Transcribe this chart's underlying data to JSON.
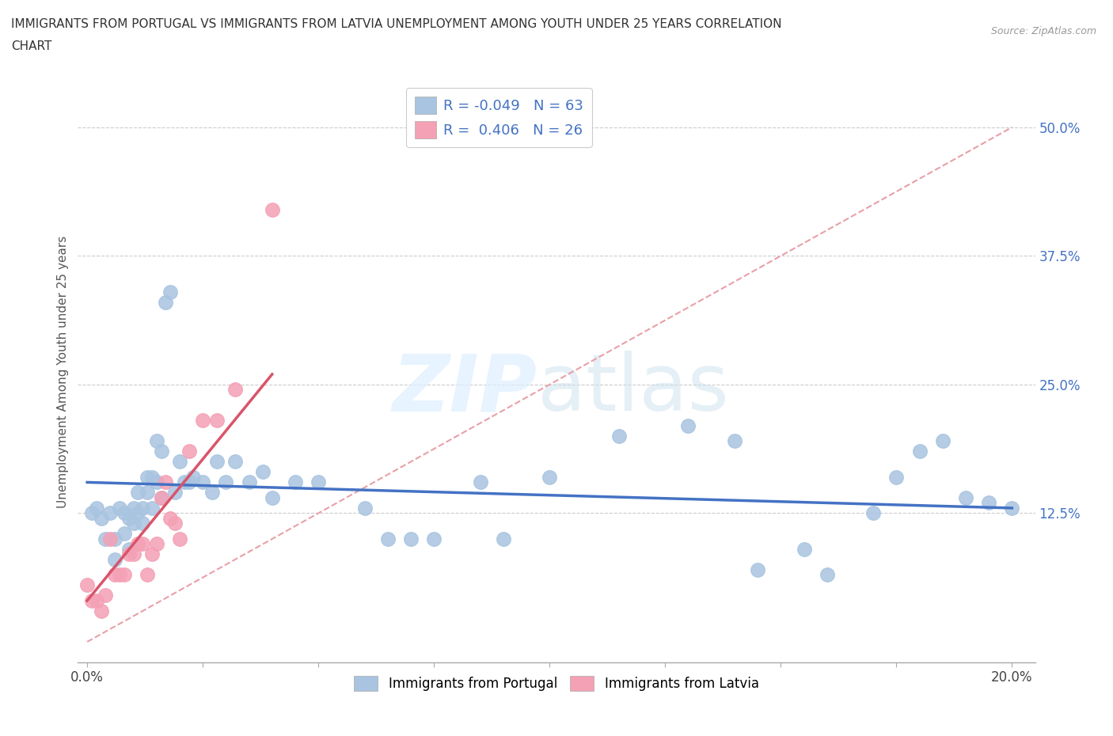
{
  "title": "IMMIGRANTS FROM PORTUGAL VS IMMIGRANTS FROM LATVIA UNEMPLOYMENT AMONG YOUTH UNDER 25 YEARS CORRELATION\nCHART",
  "source": "Source: ZipAtlas.com",
  "ylabel": "Unemployment Among Youth under 25 years",
  "xlim": [
    -0.002,
    0.205
  ],
  "ylim": [
    -0.02,
    0.545
  ],
  "y_tick_values_right": [
    0.125,
    0.25,
    0.375,
    0.5
  ],
  "y_tick_labels_right": [
    "12.5%",
    "25.0%",
    "37.5%",
    "50.0%"
  ],
  "x_ticks": [
    0.0,
    0.025,
    0.05,
    0.075,
    0.1,
    0.125,
    0.15,
    0.175,
    0.2
  ],
  "R_portugal": -0.049,
  "N_portugal": 63,
  "R_latvia": 0.406,
  "N_latvia": 26,
  "color_portugal": "#a8c4e0",
  "color_latvia": "#f4a0b5",
  "line_color_portugal": "#4472c4",
  "line_color_latvia": "#d9546a",
  "diagonal_color": "#e8a0a8",
  "portugal_x": [
    0.001,
    0.002,
    0.003,
    0.004,
    0.005,
    0.006,
    0.006,
    0.007,
    0.008,
    0.008,
    0.009,
    0.009,
    0.01,
    0.01,
    0.011,
    0.011,
    0.012,
    0.012,
    0.013,
    0.013,
    0.014,
    0.014,
    0.015,
    0.015,
    0.016,
    0.016,
    0.017,
    0.018,
    0.019,
    0.02,
    0.021,
    0.022,
    0.023,
    0.025,
    0.027,
    0.028,
    0.03,
    0.032,
    0.035,
    0.038,
    0.04,
    0.045,
    0.05,
    0.06,
    0.065,
    0.07,
    0.075,
    0.085,
    0.09,
    0.1,
    0.115,
    0.13,
    0.14,
    0.145,
    0.155,
    0.16,
    0.17,
    0.175,
    0.18,
    0.185,
    0.19,
    0.195,
    0.2
  ],
  "portugal_y": [
    0.125,
    0.13,
    0.12,
    0.1,
    0.125,
    0.1,
    0.08,
    0.13,
    0.125,
    0.105,
    0.12,
    0.09,
    0.13,
    0.115,
    0.125,
    0.145,
    0.13,
    0.115,
    0.145,
    0.16,
    0.13,
    0.16,
    0.155,
    0.195,
    0.14,
    0.185,
    0.33,
    0.34,
    0.145,
    0.175,
    0.155,
    0.155,
    0.16,
    0.155,
    0.145,
    0.175,
    0.155,
    0.175,
    0.155,
    0.165,
    0.14,
    0.155,
    0.155,
    0.13,
    0.1,
    0.1,
    0.1,
    0.155,
    0.1,
    0.16,
    0.2,
    0.21,
    0.195,
    0.07,
    0.09,
    0.065,
    0.125,
    0.16,
    0.185,
    0.195,
    0.14,
    0.135,
    0.13
  ],
  "latvia_x": [
    0.0,
    0.001,
    0.002,
    0.003,
    0.004,
    0.005,
    0.006,
    0.007,
    0.008,
    0.009,
    0.01,
    0.011,
    0.012,
    0.013,
    0.014,
    0.015,
    0.016,
    0.017,
    0.018,
    0.019,
    0.02,
    0.022,
    0.025,
    0.028,
    0.032,
    0.04
  ],
  "latvia_y": [
    0.055,
    0.04,
    0.04,
    0.03,
    0.045,
    0.1,
    0.065,
    0.065,
    0.065,
    0.085,
    0.085,
    0.095,
    0.095,
    0.065,
    0.085,
    0.095,
    0.14,
    0.155,
    0.12,
    0.115,
    0.1,
    0.185,
    0.215,
    0.215,
    0.245,
    0.42
  ],
  "port_line_x": [
    0.0,
    0.2
  ],
  "port_line_y": [
    0.155,
    0.13
  ],
  "lat_line_x": [
    0.0,
    0.04
  ],
  "lat_line_y": [
    0.04,
    0.26
  ]
}
